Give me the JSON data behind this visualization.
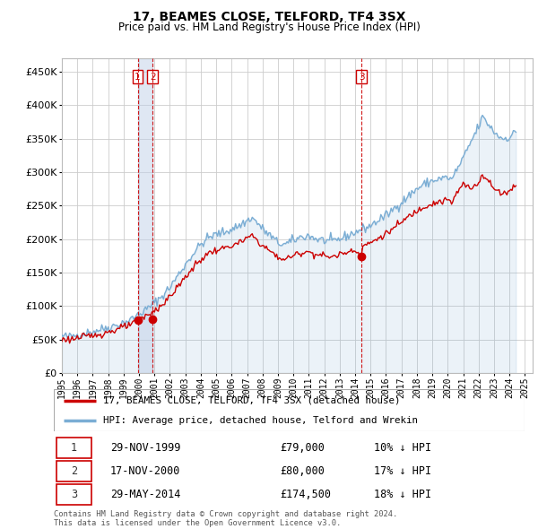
{
  "title": "17, BEAMES CLOSE, TELFORD, TF4 3SX",
  "subtitle": "Price paid vs. HM Land Registry's House Price Index (HPI)",
  "ytick_values": [
    0,
    50000,
    100000,
    150000,
    200000,
    250000,
    300000,
    350000,
    400000,
    450000
  ],
  "ylim": [
    0,
    470000
  ],
  "xlim_start": 1995.0,
  "xlim_end": 2025.5,
  "hpi_color": "#7aadd4",
  "hpi_fill_color": "#d0e4f5",
  "price_color": "#cc0000",
  "vline_color": "#cc0000",
  "vline1_color": "#aaaaee",
  "grid_color": "#cccccc",
  "background_color": "#ffffff",
  "transactions": [
    {
      "label": 1,
      "date_x": 1999.91,
      "price": 79000,
      "date_str": "29-NOV-1999",
      "price_str": "£79,000",
      "hpi_str": "10% ↓ HPI"
    },
    {
      "label": 2,
      "date_x": 2000.88,
      "price": 80000,
      "date_str": "17-NOV-2000",
      "price_str": "£80,000",
      "hpi_str": "17% ↓ HPI"
    },
    {
      "label": 3,
      "date_x": 2014.41,
      "price": 174500,
      "date_str": "29-MAY-2014",
      "price_str": "£174,500",
      "hpi_str": "18% ↓ HPI"
    }
  ],
  "legend_line1": "17, BEAMES CLOSE, TELFORD, TF4 3SX (detached house)",
  "legend_line2": "HPI: Average price, detached house, Telford and Wrekin",
  "footer_line1": "Contains HM Land Registry data © Crown copyright and database right 2024.",
  "footer_line2": "This data is licensed under the Open Government Licence v3.0."
}
